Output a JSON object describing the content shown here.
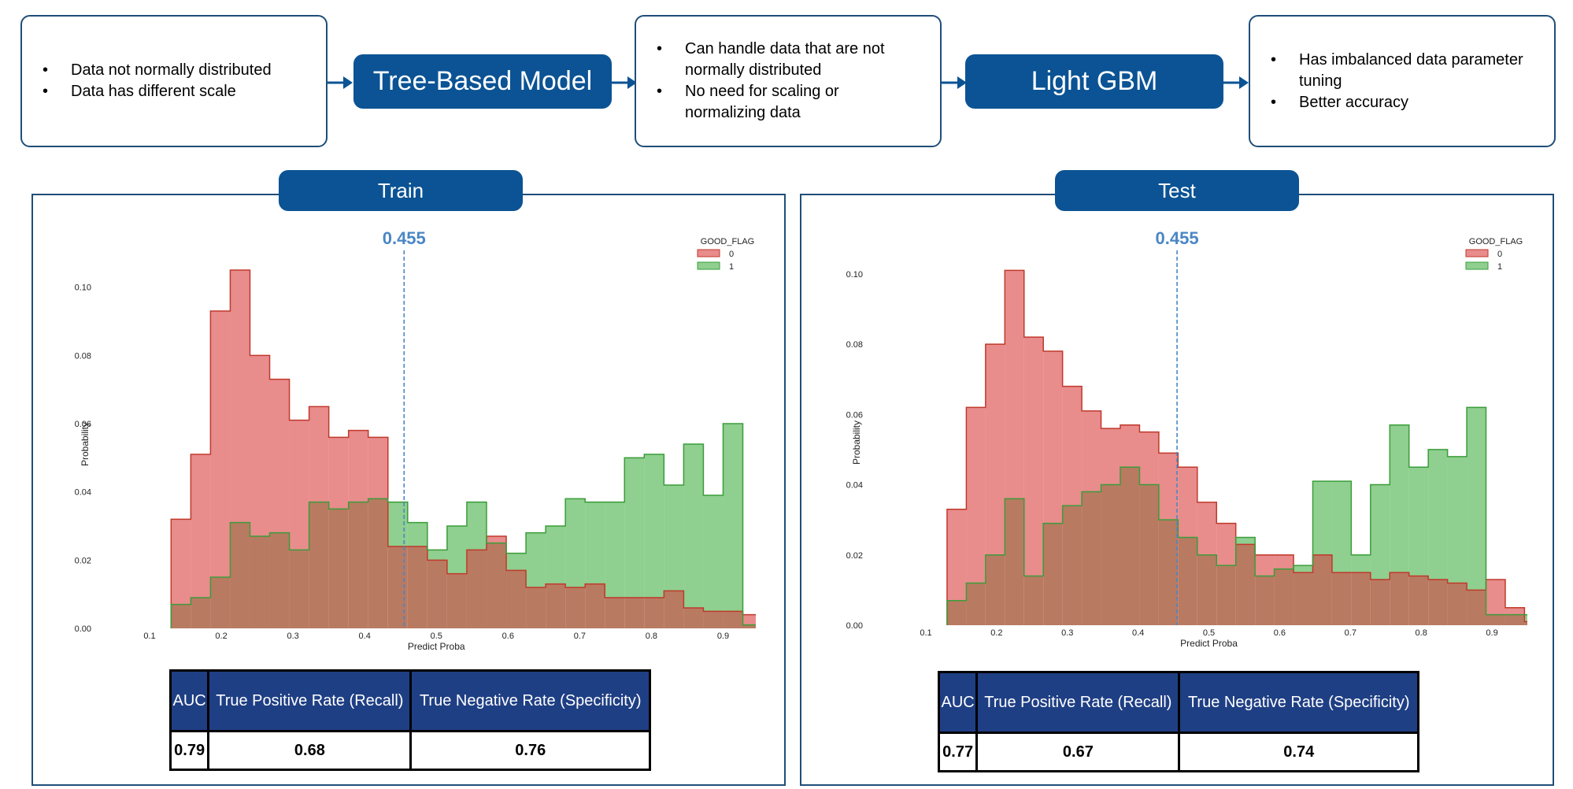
{
  "flow": {
    "box1": {
      "bullets": [
        "Data not normally distributed",
        "Data has different scale"
      ]
    },
    "step1_label": "Tree-Based Model",
    "box2": {
      "bullets": [
        "Can handle data that are not normally distributed",
        "No need for scaling or normalizing data"
      ]
    },
    "step2_label": "Light GBM",
    "box3": {
      "bullets": [
        "Has imbalanced data parameter tuning",
        "Better accuracy"
      ]
    }
  },
  "panels": [
    {
      "title": "Train",
      "metrics": {
        "headers": [
          "AUC",
          "True Positive Rate (Recall)",
          "True Negative Rate (Specificity)"
        ],
        "values": [
          "0.79",
          "0.68",
          "0.76"
        ]
      }
    },
    {
      "title": "Test",
      "metrics": {
        "headers": [
          "AUC",
          "True Positive Rate (Recall)",
          "True Negative Rate (Specificity)"
        ],
        "values": [
          "0.77",
          "0.67",
          "0.74"
        ]
      }
    }
  ],
  "colors": {
    "accent": "#0b5394",
    "class0": "#e06666",
    "class1": "#6abf69",
    "overlap": "#b5735a",
    "threshold": "#4a86c5"
  },
  "chart_data": [
    {
      "type": "histogram",
      "xlabel": "Predict Proba",
      "ylabel": "Probability",
      "xticks": [
        "0.1",
        "0.2",
        "0.3",
        "0.4",
        "0.5",
        "0.6",
        "0.7",
        "0.8",
        "0.9"
      ],
      "yticks": [
        "0.00",
        "0.02",
        "0.04",
        "0.06",
        "0.08",
        "0.10"
      ],
      "xlim": [
        0.1,
        0.95
      ],
      "ylim": [
        0,
        0.108
      ],
      "legend": {
        "title": "GOOD_FLAG",
        "labels": [
          "0",
          "1"
        ],
        "position": "top-right"
      },
      "threshold": {
        "x": 0.455,
        "label": "0.455"
      },
      "bin_start": 0.13,
      "bin_width": 0.0275,
      "series": [
        {
          "name": "0",
          "values": [
            0.032,
            0.051,
            0.093,
            0.105,
            0.08,
            0.073,
            0.061,
            0.065,
            0.056,
            0.058,
            0.056,
            0.024,
            0.024,
            0.02,
            0.016,
            0.023,
            0.027,
            0.017,
            0.012,
            0.013,
            0.012,
            0.013,
            0.009,
            0.009,
            0.009,
            0.011,
            0.006,
            0.005,
            0.005,
            0.004,
            0.002
          ]
        },
        {
          "name": "1",
          "values": [
            0.007,
            0.009,
            0.015,
            0.031,
            0.027,
            0.028,
            0.023,
            0.037,
            0.035,
            0.037,
            0.038,
            0.037,
            0.031,
            0.023,
            0.03,
            0.037,
            0.025,
            0.022,
            0.028,
            0.03,
            0.038,
            0.037,
            0.037,
            0.05,
            0.051,
            0.042,
            0.054,
            0.039,
            0.06,
            0.001,
            0.001
          ]
        }
      ]
    },
    {
      "type": "histogram",
      "xlabel": "Predict Proba",
      "ylabel": "Probability",
      "xticks": [
        "0.1",
        "0.2",
        "0.3",
        "0.4",
        "0.5",
        "0.6",
        "0.7",
        "0.8",
        "0.9"
      ],
      "yticks": [
        "0.00",
        "0.02",
        "0.04",
        "0.06",
        "0.08",
        "0.10"
      ],
      "xlim": [
        0.1,
        0.95
      ],
      "ylim": [
        0,
        0.104
      ],
      "legend": {
        "title": "GOOD_FLAG",
        "labels": [
          "0",
          "1"
        ],
        "position": "top-right"
      },
      "threshold": {
        "x": 0.455,
        "label": "0.455"
      },
      "bin_start": 0.13,
      "bin_width": 0.0272,
      "series": [
        {
          "name": "0",
          "values": [
            0.033,
            0.062,
            0.08,
            0.101,
            0.082,
            0.078,
            0.068,
            0.061,
            0.056,
            0.057,
            0.055,
            0.049,
            0.045,
            0.035,
            0.029,
            0.023,
            0.02,
            0.02,
            0.015,
            0.02,
            0.015,
            0.015,
            0.013,
            0.015,
            0.014,
            0.013,
            0.012,
            0.01,
            0.013,
            0.005,
            0.001
          ]
        },
        {
          "name": "1",
          "values": [
            0.007,
            0.012,
            0.02,
            0.036,
            0.014,
            0.029,
            0.034,
            0.038,
            0.04,
            0.045,
            0.04,
            0.03,
            0.025,
            0.02,
            0.017,
            0.025,
            0.014,
            0.016,
            0.017,
            0.041,
            0.041,
            0.02,
            0.04,
            0.057,
            0.045,
            0.05,
            0.048,
            0.062,
            0.003,
            0.003,
            0.003
          ]
        }
      ]
    }
  ]
}
